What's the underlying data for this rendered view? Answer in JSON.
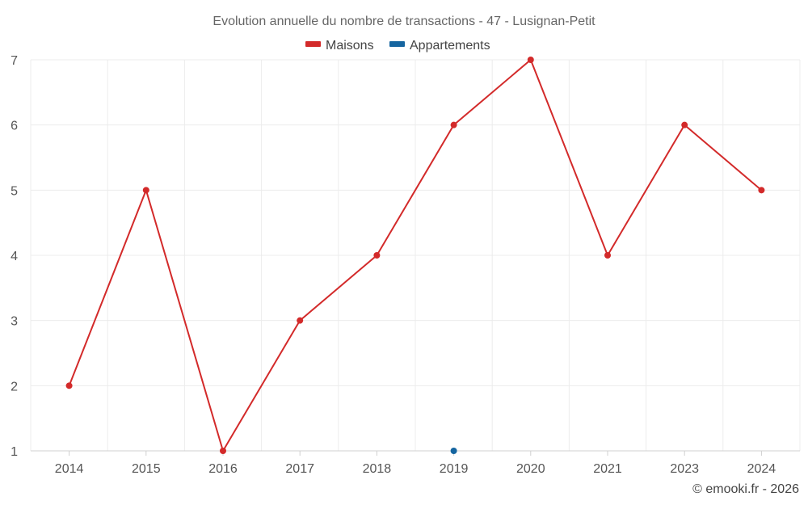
{
  "chart_data": {
    "type": "line",
    "title": "Evolution annuelle du nombre de transactions - 47 - Lusignan-Petit",
    "categories": [
      "2014",
      "2015",
      "2016",
      "2017",
      "2018",
      "2019",
      "2020",
      "2021",
      "2023",
      "2024"
    ],
    "series": [
      {
        "name": "Maisons",
        "color": "#d32a2a",
        "values": [
          2,
          5,
          1,
          3,
          4,
          6,
          7,
          4,
          6,
          5
        ]
      },
      {
        "name": "Appartements",
        "color": "#1565a0",
        "values": [
          null,
          null,
          null,
          null,
          null,
          1,
          null,
          null,
          null,
          null
        ]
      }
    ],
    "yticks": [
      1,
      2,
      3,
      4,
      5,
      6,
      7
    ],
    "ylim": [
      1,
      7
    ],
    "xlabel": "",
    "ylabel": "",
    "grid": true,
    "legend": "top-center"
  },
  "credit": "© emooki.fr - 2026"
}
